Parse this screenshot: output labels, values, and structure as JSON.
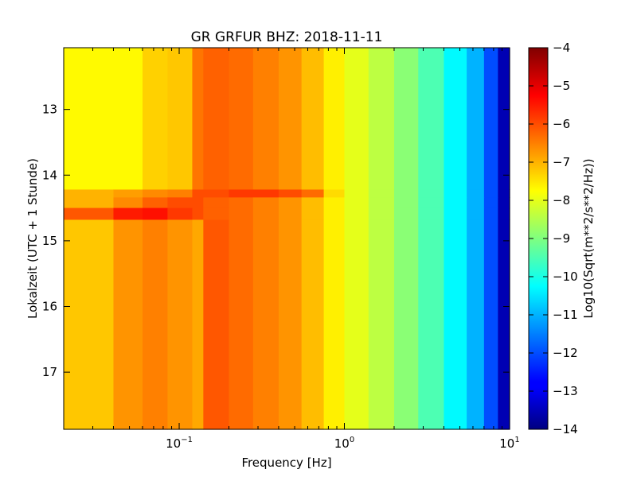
{
  "chart_data": {
    "type": "heatmap",
    "title": "GR GRFUR BHZ: 2018-11-11",
    "xlabel": "Frequency [Hz]",
    "ylabel": "Lokalzeit (UTC + 1 Stunde)",
    "colorbar_label": "Log10(Sqrt(m**2/s**2/Hz))",
    "x_scale": "log",
    "xlim": [
      0.02,
      10
    ],
    "x_ticks": [
      0.1,
      1,
      10
    ],
    "x_tick_labels": [
      {
        "base": "10",
        "exp": "−1"
      },
      {
        "base": "10",
        "exp": "0"
      },
      {
        "base": "10",
        "exp": "1"
      }
    ],
    "ylim": [
      12.06,
      17.87
    ],
    "y_inverted": true,
    "y_ticks": [
      13,
      14,
      15,
      16,
      17
    ],
    "y_tick_labels": [
      "13",
      "14",
      "15",
      "16",
      "17"
    ],
    "clim": [
      -14,
      -4
    ],
    "colorbar_ticks": [
      -4,
      -5,
      -6,
      -7,
      -8,
      -9,
      -10,
      -11,
      -12,
      -13,
      -14
    ],
    "colorbar_tick_labels": [
      "−4",
      "−5",
      "−6",
      "−7",
      "−8",
      "−9",
      "−10",
      "−11",
      "−12",
      "−13",
      "−14"
    ],
    "colormap": "jet",
    "jet_colors": [
      "#000080",
      "#0000ff",
      "#00ffff",
      "#ffff00",
      "#ff0000",
      "#800000"
    ],
    "freq_bin_edges": [
      0.02,
      0.04,
      0.06,
      0.085,
      0.12,
      0.14,
      0.2,
      0.28,
      0.4,
      0.55,
      0.75,
      1.0,
      1.4,
      2.0,
      2.8,
      4.0,
      5.5,
      7.0,
      8.5,
      10.0
    ],
    "time_bins": [
      {
        "start": 12.06,
        "end": 14.22,
        "values": [
          -7.7,
          -7.7,
          -7.3,
          -7.2,
          -6.4,
          -6.2,
          -6.3,
          -6.5,
          -6.7,
          -7.1,
          -7.6,
          -8.0,
          -8.4,
          -8.9,
          -9.5,
          -10.3,
          -11.0,
          -12.0,
          -13.5
        ]
      },
      {
        "start": 14.22,
        "end": 14.34,
        "values": [
          -7.0,
          -6.8,
          -6.6,
          -6.5,
          -6.0,
          -6.0,
          -5.8,
          -5.8,
          -6.0,
          -6.3,
          -7.4,
          -8.0,
          -8.4,
          -8.9,
          -9.5,
          -10.3,
          -11.0,
          -12.0,
          -13.5
        ]
      },
      {
        "start": 14.34,
        "end": 14.5,
        "values": [
          -7.0,
          -6.6,
          -6.2,
          -6.0,
          -6.0,
          -6.2,
          -6.3,
          -6.5,
          -6.7,
          -7.1,
          -7.6,
          -8.0,
          -8.4,
          -8.9,
          -9.5,
          -10.3,
          -11.0,
          -12.0,
          -13.5
        ]
      },
      {
        "start": 14.5,
        "end": 14.68,
        "values": [
          -6.1,
          -5.5,
          -5.4,
          -5.8,
          -6.0,
          -6.2,
          -6.3,
          -6.5,
          -6.7,
          -7.1,
          -7.6,
          -8.0,
          -8.4,
          -8.9,
          -9.5,
          -10.3,
          -11.0,
          -12.0,
          -13.5
        ]
      },
      {
        "start": 14.68,
        "end": 17.87,
        "values": [
          -7.2,
          -6.7,
          -6.5,
          -6.7,
          -6.9,
          -6.1,
          -6.3,
          -6.5,
          -6.7,
          -7.1,
          -7.6,
          -8.0,
          -8.4,
          -8.9,
          -9.5,
          -10.3,
          -11.0,
          -12.0,
          -13.5
        ]
      }
    ]
  }
}
